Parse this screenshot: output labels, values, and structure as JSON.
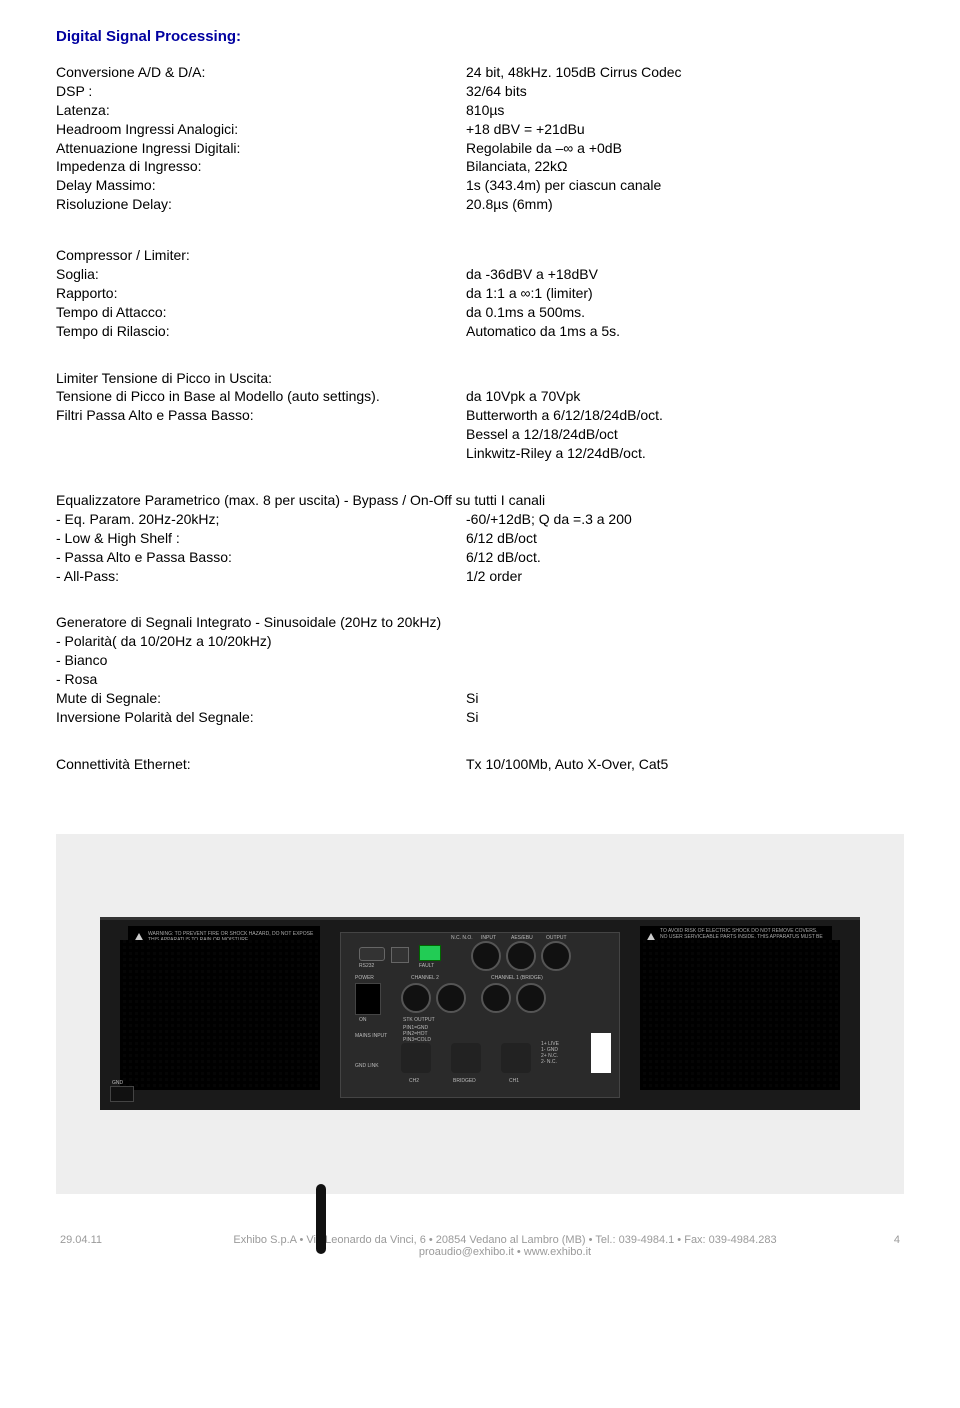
{
  "title": "Digital Signal Processing:",
  "dsp_specs": [
    {
      "label": "Conversione A/D & D/A:",
      "value": "24 bit, 48kHz. 105dB Cirrus Codec"
    },
    {
      "label": "DSP :",
      "value": "32/64 bits"
    },
    {
      "label": "Latenza:",
      "value": "810µs"
    },
    {
      "label": "Headroom Ingressi Analogici:",
      "value": "+18 dBV = +21dBu"
    },
    {
      "label": "Attenuazione Ingressi Digitali:",
      "value": "Regolabile da –∞ a +0dB"
    },
    {
      "label": "Impedenza di Ingresso:",
      "value": "Bilanciata, 22kΩ"
    },
    {
      "label": "Delay Massimo:",
      "value": "1s (343.4m) per ciascun canale"
    },
    {
      "label": "Risoluzione Delay:",
      "value": "20.8µs (6mm)"
    }
  ],
  "comp_header": "Compressor / Limiter:",
  "comp_specs": [
    {
      "label": "Soglia:",
      "value": "da -36dBV a +18dBV"
    },
    {
      "label": "Rapporto:",
      "value": "da 1:1 a ∞:1 (limiter)"
    },
    {
      "label": "Tempo di Attacco:",
      "value": "da 0.1ms a 500ms."
    },
    {
      "label": "Tempo di Rilascio:",
      "value": "Automatico da 1ms a 5s."
    }
  ],
  "limiter_header": "Limiter Tensione di Picco in Uscita:",
  "limiter_specs": [
    {
      "label": "Tensione di Picco in Base al Modello (auto settings).",
      "value": "da 10Vpk a 70Vpk"
    },
    {
      "label": "Filtri Passa Alto e Passa Basso:",
      "value": "Butterworth a 6/12/18/24dB/oct."
    },
    {
      "label": "",
      "value": "Bessel a 12/18/24dB/oct"
    },
    {
      "label": "",
      "value": "Linkwitz-Riley a 12/24dB/oct."
    }
  ],
  "eq_header": "Equalizzatore Parametrico (max. 8 per uscita) - Bypass / On-Off su tutti I canali",
  "eq_specs": [
    {
      "label": "- Eq. Param. 20Hz-20kHz;",
      "value": "-60/+12dB; Q da =.3 a 200"
    },
    {
      "label": "- Low & High Shelf :",
      "value": "6/12 dB/oct"
    },
    {
      "label": "- Passa Alto e Passa Basso:",
      "value": "6/12 dB/oct."
    },
    {
      "label": "- All-Pass:",
      "value": "1/2 order"
    }
  ],
  "gen_lines": [
    "Generatore di Segnali Integrato - Sinusoidale (20Hz to 20kHz)",
    "- Polarità( da 10/20Hz a 10/20kHz)",
    "- Bianco",
    "- Rosa"
  ],
  "gen_specs": [
    {
      "label": "Mute di Segnale:",
      "value": "Si"
    },
    {
      "label": "Inversione Polarità del Segnale:",
      "value": "Si"
    }
  ],
  "eth": {
    "label": "Connettività Ethernet:",
    "value": "Tx 10/100Mb, Auto X-Over, Cat5"
  },
  "warn_left": "WARNING:  TO PREVENT FIRE OR SHOCK HAZARD, DO NOT EXPOSE THIS APPARATUS TO RAIN OR MOISTURE.",
  "warn_right": "TO AVOID RISK OF ELECTRIC SHOCK DO NOT REMOVE COVERS. NO USER SERVICEABLE PARTS INSIDE. THIS APPARATUS MUST BE EARTHED.",
  "footer": {
    "date": "29.04.11",
    "line1": "Exhibo S.p.A • Via Leonardo da Vinci, 6 • 20854 Vedano al Lambro (MB) • Tel.: 039-4984.1 • Fax: 039-4984.283",
    "line2": "proaudio@exhibo.it • www.exhibo.it",
    "page": "4"
  },
  "colors": {
    "title": "#0000a0",
    "text": "#000000",
    "footer": "#9a9a9a",
    "image_bg": "#eeeeee",
    "amp": "#1a1a1a"
  }
}
